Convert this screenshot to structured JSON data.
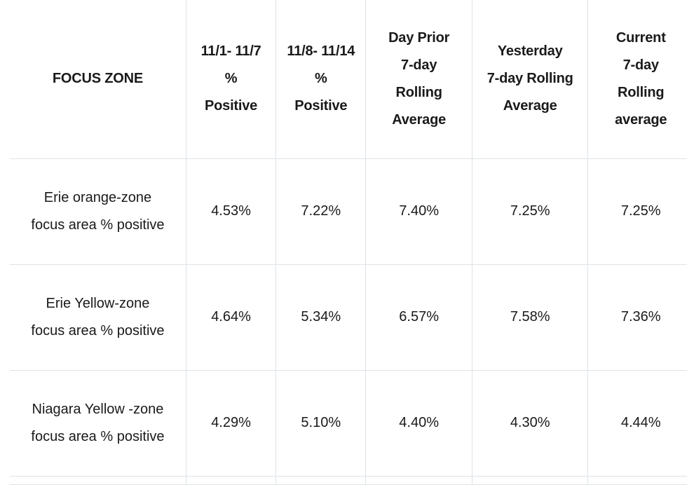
{
  "table": {
    "headers": [
      {
        "lines": [
          "FOCUS ZONE"
        ]
      },
      {
        "lines": [
          "11/1- 11/7",
          "%",
          "Positive"
        ]
      },
      {
        "lines": [
          "11/8- 11/14",
          "%",
          "Positive"
        ]
      },
      {
        "lines": [
          "Day Prior",
          "7-day",
          "Rolling",
          "Average"
        ]
      },
      {
        "lines": [
          "Yesterday",
          "7-day Rolling",
          "Average"
        ]
      },
      {
        "lines": [
          "Current",
          "7-day",
          "Rolling",
          "average"
        ]
      }
    ],
    "rows": [
      {
        "zone_lines": [
          "Erie orange-zone",
          "focus area % positive"
        ],
        "values": [
          "4.53%",
          "7.22%",
          "7.40%",
          "7.25%",
          "7.25%"
        ]
      },
      {
        "zone_lines": [
          "Erie Yellow-zone",
          "focus area % positive"
        ],
        "values": [
          "4.64%",
          "5.34%",
          "6.57%",
          "7.58%",
          "7.36%"
        ]
      },
      {
        "zone_lines": [
          "Niagara Yellow -zone",
          "focus area % positive"
        ],
        "values": [
          "4.29%",
          "5.10%",
          "4.40%",
          "4.30%",
          "4.44%"
        ]
      }
    ]
  }
}
